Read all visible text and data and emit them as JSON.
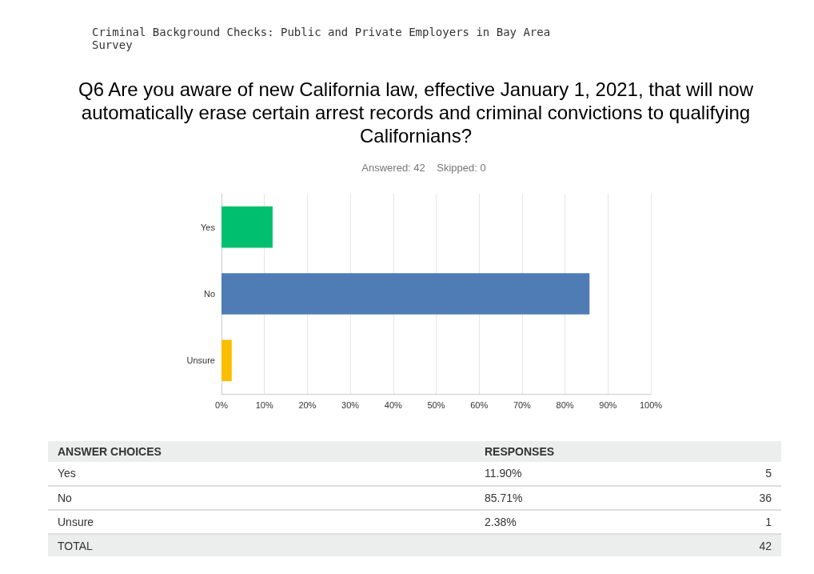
{
  "chart_data": [
    {
      "type": "bar",
      "orientation": "horizontal",
      "title": "Q6 Are you aware of new California law, effective January 1, 2021, that will now automatically erase certain arrest records and criminal convictions to qualifying Californians?",
      "subtitle": "Answered: 42    Skipped: 0",
      "categories": [
        "Yes",
        "No",
        "Unsure"
      ],
      "values": [
        11.9,
        85.71,
        2.38
      ],
      "colors": [
        "#00bf6f",
        "#507cb6",
        "#f9be00"
      ],
      "xlim": [
        0,
        100
      ],
      "xticks": [
        {
          "value": 0,
          "label": "0%"
        },
        {
          "value": 10,
          "label": "10%"
        },
        {
          "value": 20,
          "label": "20%"
        },
        {
          "value": 30,
          "label": "30%"
        },
        {
          "value": 40,
          "label": "40%"
        },
        {
          "value": 50,
          "label": "50%"
        },
        {
          "value": 60,
          "label": "60%"
        },
        {
          "value": 70,
          "label": "70%"
        },
        {
          "value": 80,
          "label": "80%"
        },
        {
          "value": 90,
          "label": "90%"
        },
        {
          "value": 100,
          "label": "100%"
        }
      ],
      "grid": "x",
      "annotations": [
        "Criminal Background Checks: Public and Private Employers in Bay Area Survey"
      ]
    },
    {
      "type": "other",
      "annotations": [
        "ANSWER CHOICES",
        "RESPONSES",
        "Yes",
        "11.90%",
        "5",
        "No",
        "85.71%",
        "36",
        "Unsure",
        "2.38%",
        "1",
        "TOTAL",
        "42"
      ]
    }
  ]
}
